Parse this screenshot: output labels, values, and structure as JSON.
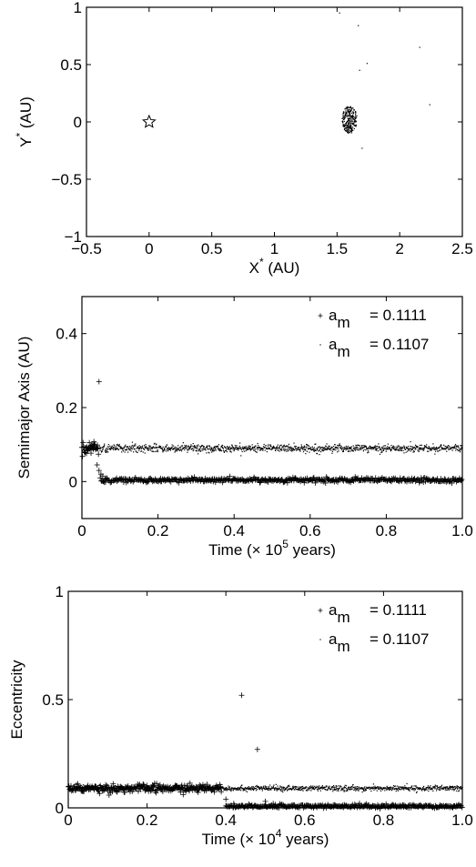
{
  "chart_data": [
    {
      "type": "scatter",
      "title": "",
      "xlabel": "X",
      "xlabel_sup": "*",
      "xlabel_unit": "(AU)",
      "ylabel": "Y",
      "ylabel_sup": "*",
      "ylabel_unit": "(AU)",
      "xlim": [
        -0.5,
        2.5
      ],
      "ylim": [
        -1,
        1
      ],
      "xticks": [
        -0.5,
        0,
        0.5,
        1,
        1.5,
        2,
        2.5
      ],
      "xtick_labels": [
        "−0.5",
        "0",
        "0.5",
        "1",
        "1.5",
        "2",
        "2.5"
      ],
      "yticks": [
        -1,
        -0.5,
        0,
        0.5,
        1
      ],
      "ytick_labels": [
        "−1",
        "−0.5",
        "0",
        "0.5",
        "1"
      ],
      "grid": false,
      "series": [
        {
          "marker": "star",
          "points": [
            [
              0,
              0
            ]
          ]
        },
        {
          "marker": "dot",
          "cluster": {
            "center": [
              1.6,
              0.02
            ],
            "rx": 0.06,
            "ry": 0.12,
            "count": 260
          },
          "points": [
            [
              1.52,
              0.95
            ],
            [
              1.67,
              0.84
            ],
            [
              1.68,
              0.45
            ],
            [
              1.74,
              0.51
            ],
            [
              2.16,
              0.65
            ],
            [
              2.24,
              0.15
            ],
            [
              1.7,
              -0.23
            ]
          ]
        }
      ]
    },
    {
      "type": "scatter",
      "title": "",
      "xlabel": "Time (× 10",
      "xlabel_sup": "5",
      "xlabel_tail": " years)",
      "ylabel": "Semimajor Axis (AU)",
      "xlim": [
        0,
        1.0
      ],
      "ylim": [
        -0.1,
        0.5
      ],
      "xticks": [
        0,
        0.2,
        0.4,
        0.6,
        0.8,
        1.0
      ],
      "xtick_labels": [
        "0",
        "0.2",
        "0.4",
        "0.6",
        "0.8",
        "1.0"
      ],
      "yticks": [
        0,
        0.2,
        0.4
      ],
      "ytick_labels": [
        "0",
        "0.2",
        "0.4"
      ],
      "grid": false,
      "legend": [
        {
          "marker": "+",
          "label": "a",
          "sub": "m",
          "value": "= 0.1111"
        },
        {
          "marker": ".",
          "label": "a",
          "sub": "m",
          "value": "= 0.1107"
        }
      ],
      "series": [
        {
          "name": "a_m = 0.1107",
          "marker": ".",
          "band": {
            "x_range": [
              0,
              1.0
            ],
            "y": 0.09,
            "spread": 0.005
          }
        },
        {
          "name": "a_m = 0.1111",
          "marker": "+",
          "early": {
            "x_range": [
              0,
              0.045
            ],
            "y": 0.09,
            "spread": 0.012
          },
          "band": {
            "x_range": [
              0.05,
              1.0
            ],
            "y": 0.004,
            "spread": 0.003
          },
          "points": [
            [
              0.045,
              0.27
            ],
            [
              0.04,
              0.045
            ],
            [
              0.045,
              0.03
            ],
            [
              0.05,
              0.02
            ],
            [
              0.055,
              0.015
            ],
            [
              0.048,
              0.01
            ]
          ]
        }
      ]
    },
    {
      "type": "scatter",
      "title": "",
      "xlabel": "Time (× 10",
      "xlabel_sup": "4",
      "xlabel_tail": " years)",
      "ylabel": "Eccentricity",
      "xlim": [
        0,
        1.0
      ],
      "ylim": [
        0,
        1
      ],
      "xticks": [
        0,
        0.2,
        0.4,
        0.6,
        0.8,
        1.0
      ],
      "xtick_labels": [
        "0",
        "0.2",
        "0.4",
        "0.6",
        "0.8",
        "1.0"
      ],
      "yticks": [
        0,
        0.5,
        1
      ],
      "ytick_labels": [
        "0",
        "0.5",
        "1"
      ],
      "grid": false,
      "legend": [
        {
          "marker": "+",
          "label": "a",
          "sub": "m",
          "value": "= 0.1111"
        },
        {
          "marker": ".",
          "label": "a",
          "sub": "m",
          "value": "= 0.1107"
        }
      ],
      "series": [
        {
          "name": "a_m = 0.1107",
          "marker": ".",
          "band": {
            "x_range": [
              0,
              1.0
            ],
            "y": 0.09,
            "spread": 0.006
          }
        },
        {
          "name": "a_m = 0.1111",
          "marker": "+",
          "early": {
            "x_range": [
              0,
              0.39
            ],
            "y": 0.09,
            "spread": 0.01
          },
          "band": {
            "x_range": [
              0.4,
              1.0
            ],
            "y": 0.008,
            "spread": 0.004
          },
          "points": [
            [
              0.44,
              0.52
            ],
            [
              0.48,
              0.27
            ],
            [
              0.4,
              0.04
            ],
            [
              0.42,
              0.02
            ],
            [
              0.5,
              0.03
            ],
            [
              0.52,
              0.02
            ]
          ]
        }
      ]
    }
  ]
}
